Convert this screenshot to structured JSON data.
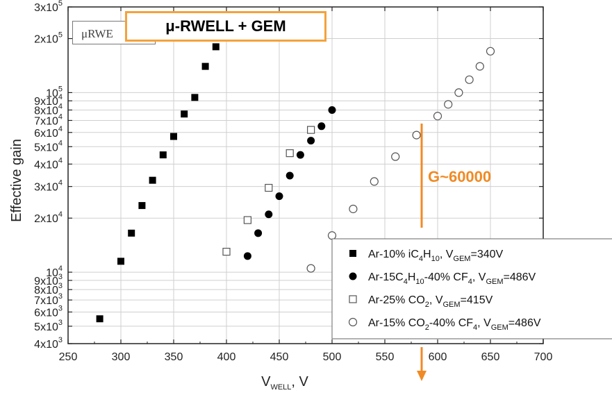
{
  "title_box_text": "μ-RWELL + GEM",
  "inset_text": "μRWE",
  "annotation_text": "G~60000",
  "colors": {
    "annotation": "#f08a24",
    "title_border": "#f4a23c",
    "marker": "#000000"
  },
  "chart_data": {
    "type": "scatter",
    "x_axis": {
      "label": "V_WELL, V",
      "range": [
        250,
        700
      ],
      "ticks": [
        "250",
        "300",
        "350",
        "400",
        "450",
        "500",
        "550",
        "600",
        "650",
        "700"
      ]
    },
    "y_axis": {
      "label": "Effective gain",
      "scale": "log",
      "range": [
        4000,
        300000
      ],
      "tick_labels": [
        {
          "value": 4000,
          "mant": "4x10",
          "exp": "3"
        },
        {
          "value": 5000,
          "mant": "5x10",
          "exp": "3"
        },
        {
          "value": 6000,
          "mant": "6x10",
          "exp": "3"
        },
        {
          "value": 7000,
          "mant": "7x10",
          "exp": "3"
        },
        {
          "value": 8000,
          "mant": "8x10",
          "exp": "3"
        },
        {
          "value": 9000,
          "mant": "9x10",
          "exp": "3"
        },
        {
          "value": 10000,
          "mant": "10",
          "exp": "4"
        },
        {
          "value": 20000,
          "mant": "2x10",
          "exp": "4"
        },
        {
          "value": 30000,
          "mant": "3x10",
          "exp": "4"
        },
        {
          "value": 40000,
          "mant": "4x10",
          "exp": "4"
        },
        {
          "value": 50000,
          "mant": "5x10",
          "exp": "4"
        },
        {
          "value": 60000,
          "mant": "6x10",
          "exp": "4"
        },
        {
          "value": 70000,
          "mant": "7x10",
          "exp": "4"
        },
        {
          "value": 80000,
          "mant": "8x10",
          "exp": "4"
        },
        {
          "value": 90000,
          "mant": "9x10",
          "exp": "4"
        },
        {
          "value": 100000,
          "mant": "10",
          "exp": "5"
        },
        {
          "value": 200000,
          "mant": "2x10",
          "exp": "5"
        },
        {
          "value": 300000,
          "mant": "3x10",
          "exp": "5"
        }
      ]
    },
    "grid": true,
    "legend_position": "bottom-right",
    "series": [
      {
        "name": "Ar-10% iC4H10, VGEM=340V",
        "marker": "filled-square",
        "legend_parts": [
          [
            "Ar-10% iC",
            ""
          ],
          [
            "4",
            "sub"
          ],
          [
            "H",
            ""
          ],
          [
            "10",
            "sub"
          ],
          [
            ", V",
            ""
          ],
          [
            "GEM",
            "sub"
          ],
          [
            "=340V",
            ""
          ]
        ],
        "points": [
          [
            280,
            5500
          ],
          [
            300,
            11500
          ],
          [
            310,
            16500
          ],
          [
            320,
            23500
          ],
          [
            330,
            32500
          ],
          [
            340,
            45000
          ],
          [
            350,
            57000
          ],
          [
            360,
            76000
          ],
          [
            370,
            94000
          ],
          [
            380,
            140000
          ],
          [
            390,
            180000
          ]
        ]
      },
      {
        "name": "Ar-15C4H10-40% CF4, VGEM=486V",
        "marker": "filled-circle",
        "legend_parts": [
          [
            "Ar-15C",
            ""
          ],
          [
            "4",
            "sub"
          ],
          [
            "H",
            ""
          ],
          [
            "10",
            "sub"
          ],
          [
            "-40% CF",
            ""
          ],
          [
            "4",
            "sub"
          ],
          [
            ", V",
            ""
          ],
          [
            "GEM",
            "sub"
          ],
          [
            "=486V",
            ""
          ]
        ],
        "points": [
          [
            420,
            12300
          ],
          [
            430,
            16500
          ],
          [
            440,
            21000
          ],
          [
            450,
            26500
          ],
          [
            460,
            34500
          ],
          [
            470,
            45000
          ],
          [
            480,
            54000
          ],
          [
            490,
            65000
          ],
          [
            500,
            80000
          ]
        ]
      },
      {
        "name": "Ar-25% CO2, VGEM=415V",
        "marker": "open-square",
        "legend_parts": [
          [
            "Ar-25% CO",
            ""
          ],
          [
            "2",
            "sub"
          ],
          [
            ", V",
            ""
          ],
          [
            "GEM",
            "sub"
          ],
          [
            "=415V",
            ""
          ]
        ],
        "points": [
          [
            400,
            13000
          ],
          [
            420,
            19500
          ],
          [
            440,
            29500
          ],
          [
            460,
            46000
          ],
          [
            480,
            62000
          ]
        ]
      },
      {
        "name": "Ar-15% CO2-40% CF4, VGEM=486V",
        "marker": "open-circle",
        "legend_parts": [
          [
            "Ar-15% CO",
            ""
          ],
          [
            "2",
            "sub"
          ],
          [
            "-40% CF",
            ""
          ],
          [
            "4",
            "sub"
          ],
          [
            ", V",
            ""
          ],
          [
            "GEM",
            "sub"
          ],
          [
            "=486V",
            ""
          ]
        ],
        "points": [
          [
            480,
            10500
          ],
          [
            500,
            16000
          ],
          [
            520,
            22500
          ],
          [
            540,
            32000
          ],
          [
            560,
            44000
          ],
          [
            580,
            58000
          ],
          [
            600,
            74000
          ],
          [
            610,
            86000
          ],
          [
            620,
            100000
          ],
          [
            630,
            118000
          ],
          [
            640,
            140000
          ],
          [
            650,
            170000
          ]
        ]
      }
    ]
  }
}
